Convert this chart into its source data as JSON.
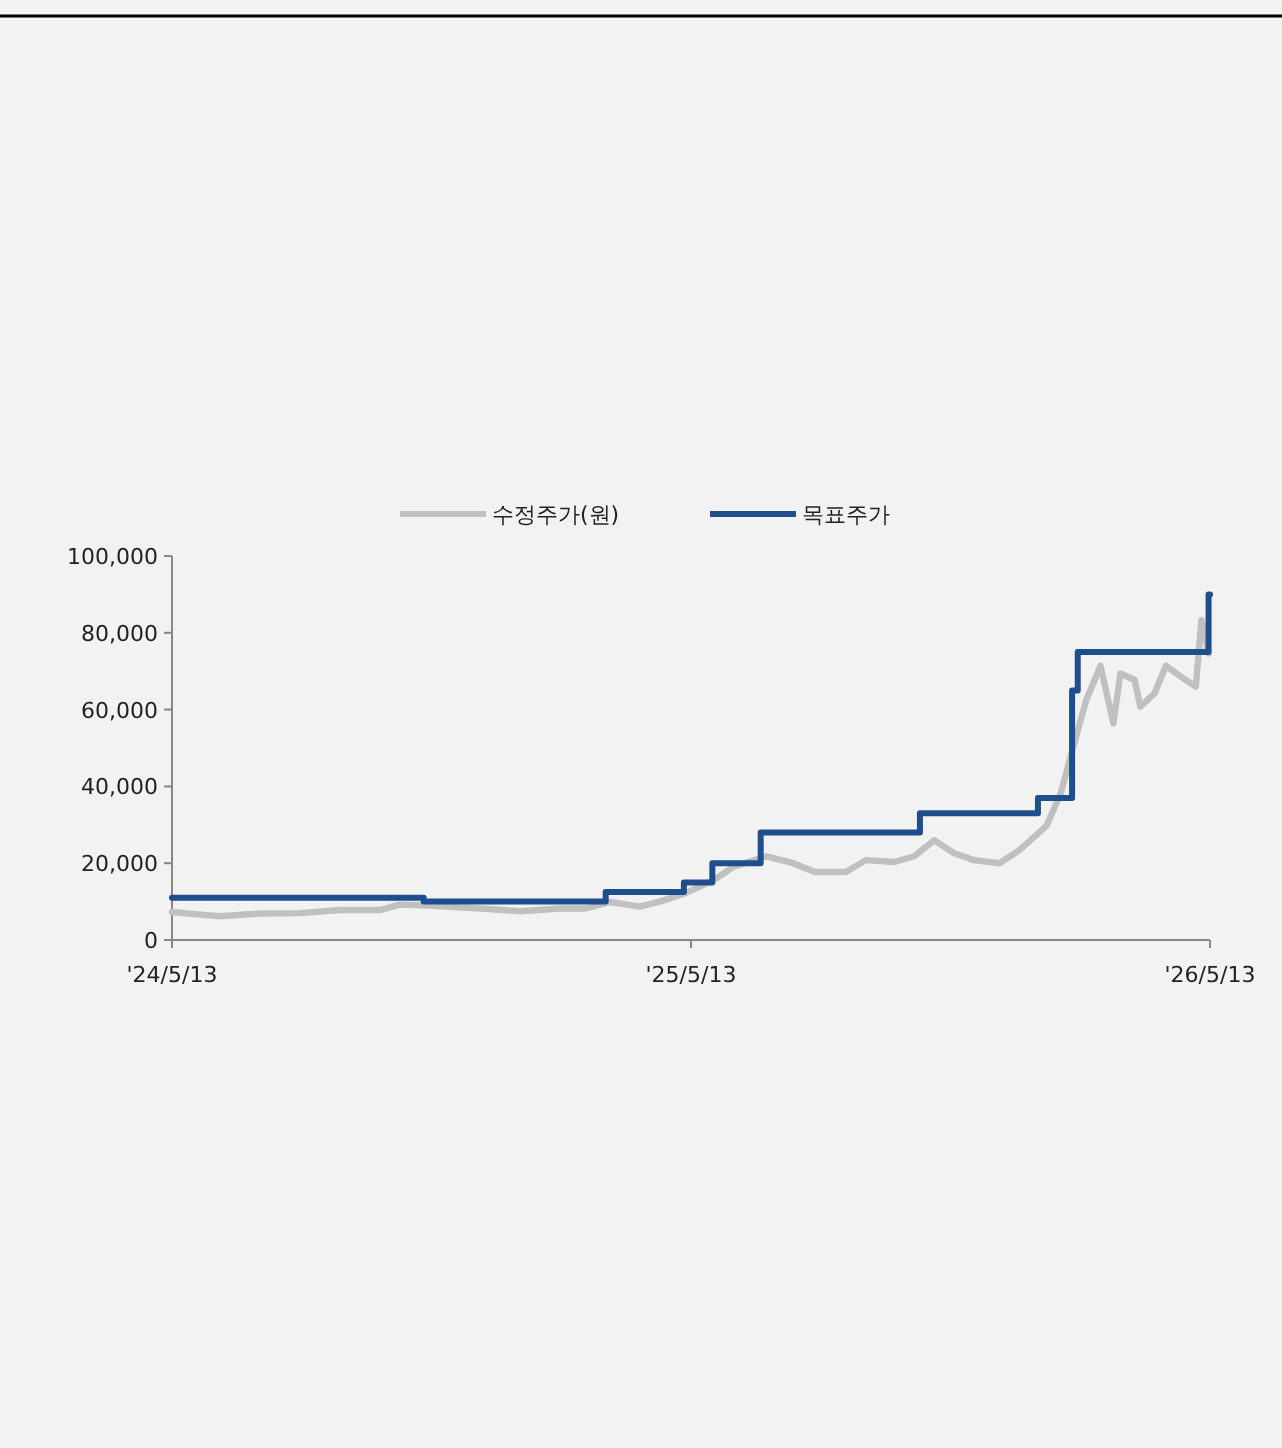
{
  "chart_data": {
    "type": "line",
    "legend": "top",
    "grid": false,
    "xlim": [
      "2024-05-13",
      "2026-05-13"
    ],
    "xticks": [
      {
        "value": "2024-05-13",
        "label": "'24/5/13"
      },
      {
        "value": "2025-05-13",
        "label": "'25/5/13"
      },
      {
        "value": "2026-05-13",
        "label": "'26/5/13"
      }
    ],
    "ylim": [
      0,
      100000
    ],
    "yticks": [
      0,
      {
        "value": 20000,
        "label": "20,000"
      },
      {
        "value": 40000,
        "label": "40,000"
      },
      {
        "value": 60000,
        "label": "60,000"
      },
      {
        "value": 80000,
        "label": "80,000"
      },
      {
        "value": 100000,
        "label": "100,000"
      }
    ],
    "series": [
      {
        "name": "수정주가(원)",
        "type": "line",
        "color": "#c0c0c0",
        "x": [
          "2024-05-13",
          "2024-05-27",
          "2024-06-16",
          "2024-07-14",
          "2024-08-11",
          "2024-09-08",
          "2024-10-06",
          "2024-10-20",
          "2024-11-10",
          "2024-12-16",
          "2025-01-13",
          "2025-02-10",
          "2025-02-28",
          "2025-03-17",
          "2025-04-07",
          "2025-04-21",
          "2025-05-09",
          "2025-05-29",
          "2025-06-12",
          "2025-07-05",
          "2025-07-24",
          "2025-08-08",
          "2025-08-30",
          "2025-09-13",
          "2025-10-03",
          "2025-10-17",
          "2025-10-31",
          "2025-11-14",
          "2025-11-28",
          "2025-12-16",
          "2025-12-30",
          "2026-01-18",
          "2026-01-28",
          "2026-02-06",
          "2026-02-15",
          "2026-02-25",
          "2026-03-06",
          "2026-03-11",
          "2026-03-21",
          "2026-03-25",
          "2026-04-04",
          "2026-04-12",
          "2026-04-26",
          "2026-05-03",
          "2026-05-07",
          "2026-05-12"
        ],
        "values": [
          7300,
          6800,
          6200,
          6900,
          7000,
          7800,
          7800,
          9200,
          9000,
          8200,
          7500,
          8200,
          8200,
          9900,
          8700,
          10000,
          12200,
          15600,
          19100,
          21800,
          20000,
          17700,
          17700,
          20800,
          20300,
          21800,
          26000,
          22600,
          20800,
          20000,
          23400,
          29700,
          38200,
          50500,
          62500,
          71400,
          56400,
          69400,
          67700,
          60800,
          64200,
          71400,
          67700,
          66000,
          83300,
          74600
        ]
      },
      {
        "name": "목표주가",
        "type": "step",
        "color": "#1f4e8c",
        "x": [
          "2024-05-13",
          "2024-11-06",
          "2025-03-14",
          "2025-05-08",
          "2025-05-28",
          "2025-07-01",
          "2025-10-21",
          "2026-01-12",
          "2026-02-05",
          "2026-02-09",
          "2026-05-12",
          "2026-05-13"
        ],
        "values": [
          11000,
          10000,
          12500,
          15000,
          20000,
          28000,
          33000,
          37000,
          65000,
          75000,
          90000,
          90000
        ]
      }
    ]
  }
}
